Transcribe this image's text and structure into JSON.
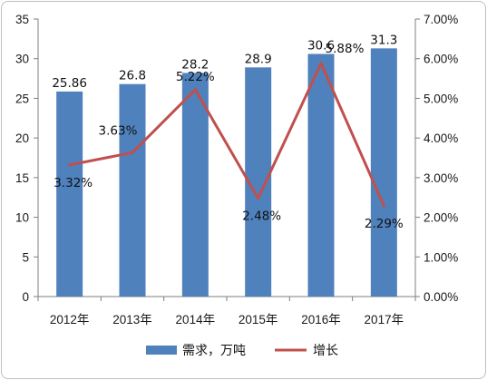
{
  "chart_data": {
    "type": "bar",
    "categories": [
      "2012年",
      "2013年",
      "2014年",
      "2015年",
      "2016年",
      "2017年"
    ],
    "series": [
      {
        "name": "需求，万吨",
        "type": "bar",
        "axis": "left",
        "color": "#4f81bd",
        "values": [
          25.86,
          26.8,
          28.2,
          28.9,
          30.6,
          31.3
        ],
        "labels": [
          "25.86",
          "26.8",
          "28.2",
          "28.9",
          "30.6",
          "31.3"
        ]
      },
      {
        "name": "增长",
        "type": "line",
        "axis": "right",
        "color": "#c0504d",
        "values": [
          3.32,
          3.63,
          5.22,
          2.48,
          5.88,
          2.29
        ],
        "labels": [
          "3.32%",
          "3.63%",
          "5.22%",
          "2.48%",
          "5.88%",
          "2.29%"
        ]
      }
    ],
    "y_left": {
      "ylim": [
        0,
        35
      ],
      "ticks": [
        "0",
        "5",
        "10",
        "15",
        "20",
        "25",
        "30",
        "35"
      ]
    },
    "y_right": {
      "ylim": [
        0,
        7
      ],
      "ticks": [
        "0.00%",
        "1.00%",
        "2.00%",
        "3.00%",
        "4.00%",
        "5.00%",
        "6.00%",
        "7.00%"
      ]
    },
    "title": "",
    "xlabel": "",
    "ylabel": "",
    "grid": false,
    "legend": "bottom"
  }
}
